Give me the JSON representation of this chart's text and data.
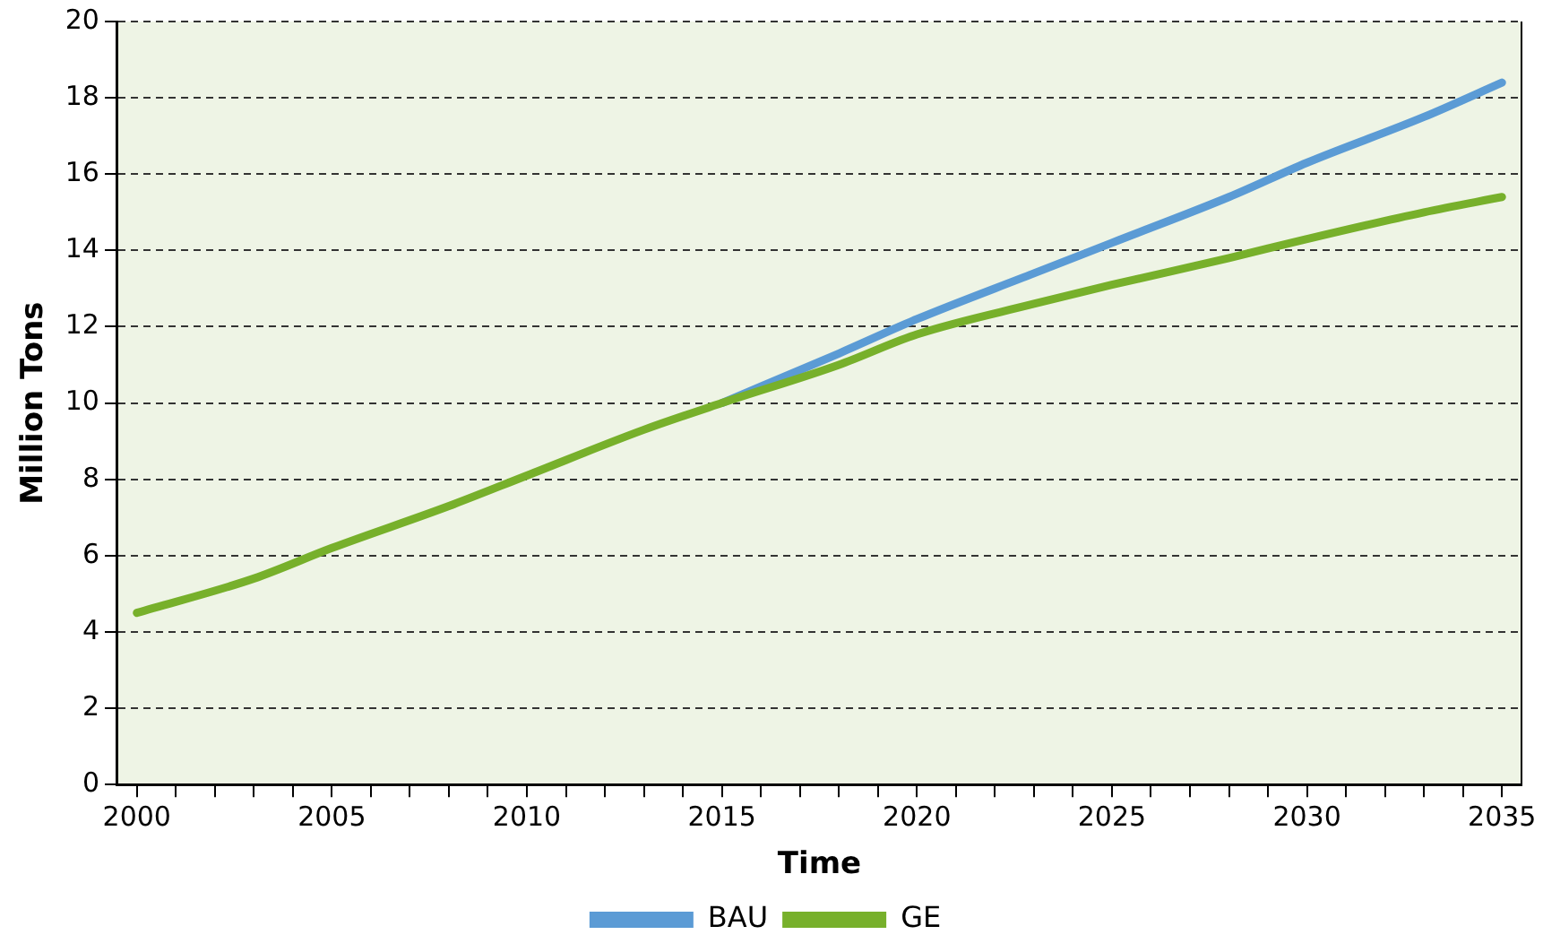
{
  "chart_data": {
    "type": "line",
    "xlabel": "Time",
    "ylabel": "Million Tons",
    "xlim": [
      1999.5,
      2035.5
    ],
    "xticks": [
      {
        "value": 2000,
        "label": "2000"
      },
      {
        "value": 2001,
        "label": null
      },
      {
        "value": 2002,
        "label": null
      },
      {
        "value": 2003,
        "label": null
      },
      {
        "value": 2004,
        "label": null
      },
      {
        "value": 2005,
        "label": "2005"
      },
      {
        "value": 2006,
        "label": null
      },
      {
        "value": 2007,
        "label": null
      },
      {
        "value": 2008,
        "label": null
      },
      {
        "value": 2009,
        "label": null
      },
      {
        "value": 2010,
        "label": "2010"
      },
      {
        "value": 2011,
        "label": null
      },
      {
        "value": 2012,
        "label": null
      },
      {
        "value": 2013,
        "label": null
      },
      {
        "value": 2014,
        "label": null
      },
      {
        "value": 2015,
        "label": "2015"
      },
      {
        "value": 2016,
        "label": null
      },
      {
        "value": 2017,
        "label": null
      },
      {
        "value": 2018,
        "label": null
      },
      {
        "value": 2019,
        "label": null
      },
      {
        "value": 2020,
        "label": "2020"
      },
      {
        "value": 2021,
        "label": null
      },
      {
        "value": 2022,
        "label": null
      },
      {
        "value": 2023,
        "label": null
      },
      {
        "value": 2024,
        "label": null
      },
      {
        "value": 2025,
        "label": "2025"
      },
      {
        "value": 2026,
        "label": null
      },
      {
        "value": 2027,
        "label": null
      },
      {
        "value": 2028,
        "label": null
      },
      {
        "value": 2029,
        "label": null
      },
      {
        "value": 2030,
        "label": "2030"
      },
      {
        "value": 2031,
        "label": null
      },
      {
        "value": 2032,
        "label": null
      },
      {
        "value": 2033,
        "label": null
      },
      {
        "value": 2034,
        "label": null
      },
      {
        "value": 2035,
        "label": "2035"
      }
    ],
    "ylim": [
      0,
      20
    ],
    "yticks": [
      0,
      2,
      4,
      6,
      8,
      10,
      12,
      14,
      16,
      18,
      20
    ],
    "x": [
      2000,
      2003,
      2005,
      2008,
      2010,
      2013,
      2015,
      2018,
      2020,
      2023,
      2025,
      2028,
      2030,
      2033,
      2035
    ],
    "series": [
      {
        "name": "BAU",
        "color": "#5b9bd5",
        "values": [
          null,
          null,
          null,
          null,
          null,
          null,
          10.0,
          11.3,
          12.2,
          13.4,
          14.2,
          15.4,
          16.3,
          17.5,
          18.4
        ]
      },
      {
        "name": "GE",
        "color": "#77b02b",
        "values": [
          4.5,
          5.4,
          6.2,
          7.3,
          8.1,
          9.3,
          10.0,
          11.0,
          11.8,
          12.6,
          13.1,
          13.8,
          14.3,
          15.0,
          15.4
        ]
      }
    ],
    "grid": "y",
    "legend": "bottom",
    "marker": "none",
    "line_style": "solid"
  }
}
